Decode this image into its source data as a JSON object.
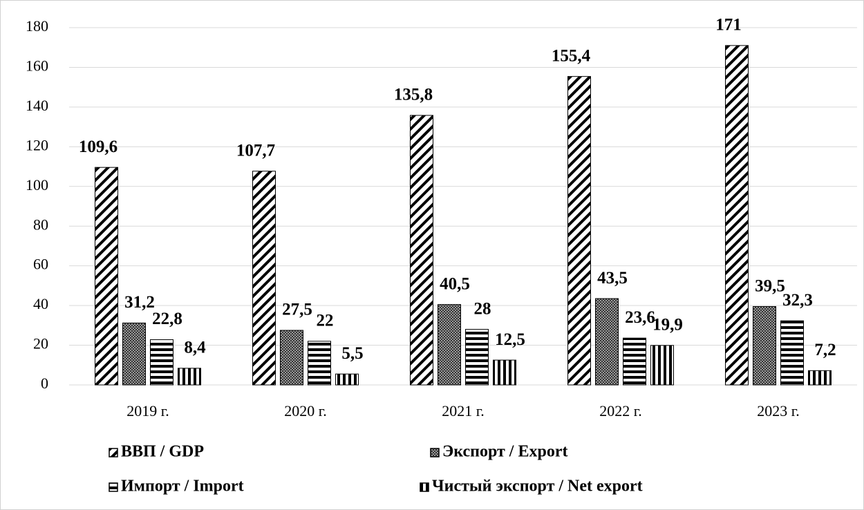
{
  "chart_data": {
    "type": "bar",
    "categories": [
      "2019 г.",
      "2020 г.",
      "2021 г.",
      "2022 г.",
      "2023 г."
    ],
    "series": [
      {
        "name": "ВВП / GDP",
        "pattern": "diagonal",
        "color": "#000000",
        "values": [
          109.6,
          107.7,
          135.8,
          155.4,
          171
        ],
        "value_labels": [
          "109,6",
          "107,7",
          "135,8",
          "155,4",
          "171"
        ]
      },
      {
        "name": "Экспорт / Export",
        "pattern": "dots",
        "color": "#000000",
        "values": [
          31.2,
          27.5,
          40.5,
          43.5,
          39.5
        ],
        "value_labels": [
          "31,2",
          "27,5",
          "40,5",
          "43,5",
          "39,5"
        ]
      },
      {
        "name": "Импорт /  Import",
        "pattern": "horizontal",
        "color": "#000000",
        "values": [
          22.8,
          22,
          28,
          23.6,
          32.3
        ],
        "value_labels": [
          "22,8",
          "22",
          "28",
          "23,6",
          "32,3"
        ]
      },
      {
        "name": "Чистый экспорт / Net export",
        "pattern": "vertical",
        "color": "#000000",
        "values": [
          8.4,
          5.5,
          12.5,
          19.9,
          7.2
        ],
        "value_labels": [
          "8,4",
          "5,5",
          "12,5",
          "19,9",
          "7,2"
        ]
      }
    ],
    "ylim": [
      0,
      180
    ],
    "yticks": [
      0,
      20,
      40,
      60,
      80,
      100,
      120,
      140,
      160,
      180
    ],
    "grid": true,
    "legend": "bottom"
  }
}
